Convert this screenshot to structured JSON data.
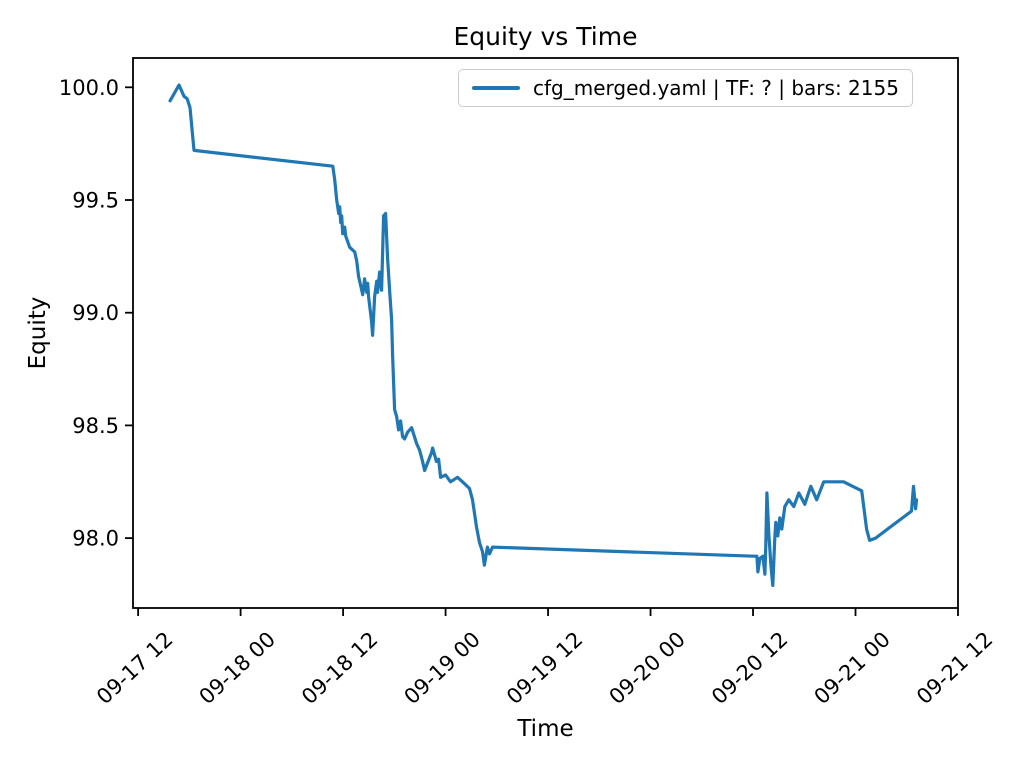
{
  "figure": {
    "title": "Equity vs Time",
    "xlabel": "Time",
    "ylabel": "Equity"
  },
  "legend": {
    "label": "cfg_merged.yaml | TF: ? | bars: 2155",
    "line_color": "#1f77b4",
    "position": "upper center-right inside axes"
  },
  "style": {
    "line_color": "#1f77b4",
    "axis_color": "#000000",
    "background": "#ffffff",
    "legend_border_color": "#cccccc",
    "line_width": 3.2
  },
  "chart_data": {
    "type": "line",
    "title": "Equity vs Time",
    "xlabel": "Time",
    "ylabel": "Equity",
    "grid": false,
    "x_unit": "hours since 09-17 00:00",
    "xlim": [
      11.4,
      108.0
    ],
    "ylim": [
      97.69,
      100.13
    ],
    "y_ticks": [
      98.0,
      98.5,
      99.0,
      99.5,
      100.0
    ],
    "x_ticks": [
      {
        "pos": 12,
        "label": "09-17 12"
      },
      {
        "pos": 24,
        "label": "09-18 00"
      },
      {
        "pos": 36,
        "label": "09-18 12"
      },
      {
        "pos": 48,
        "label": "09-19 00"
      },
      {
        "pos": 60,
        "label": "09-19 12"
      },
      {
        "pos": 72,
        "label": "09-20 00"
      },
      {
        "pos": 84,
        "label": "09-20 12"
      },
      {
        "pos": 96,
        "label": "09-21 00"
      },
      {
        "pos": 108,
        "label": "09-21 12"
      }
    ],
    "series": [
      {
        "name": "cfg_merged.yaml | TF: ? | bars: 2155",
        "color": "#1f77b4",
        "points": [
          [
            15.74,
            99.94
          ],
          [
            16.79,
            100.01
          ],
          [
            17.37,
            99.96
          ],
          [
            17.73,
            99.95
          ],
          [
            18.08,
            99.91
          ],
          [
            18.54,
            99.72
          ],
          [
            34.79,
            99.65
          ],
          [
            35.02,
            99.59
          ],
          [
            35.25,
            99.5
          ],
          [
            35.49,
            99.44
          ],
          [
            35.6,
            99.47
          ],
          [
            35.72,
            99.4
          ],
          [
            35.84,
            99.43
          ],
          [
            35.95,
            99.35
          ],
          [
            36.19,
            99.38
          ],
          [
            36.3,
            99.34
          ],
          [
            36.77,
            99.29
          ],
          [
            37.36,
            99.27
          ],
          [
            37.59,
            99.23
          ],
          [
            37.82,
            99.16
          ],
          [
            38.06,
            99.12
          ],
          [
            38.29,
            99.08
          ],
          [
            38.52,
            99.15
          ],
          [
            38.76,
            99.09
          ],
          [
            38.88,
            99.13
          ],
          [
            38.99,
            99.07
          ],
          [
            39.34,
            98.96
          ],
          [
            39.46,
            98.9
          ],
          [
            39.69,
            99.07
          ],
          [
            39.93,
            99.14
          ],
          [
            40.04,
            99.09
          ],
          [
            40.28,
            99.18
          ],
          [
            40.51,
            99.1
          ],
          [
            40.74,
            99.43
          ],
          [
            40.98,
            99.44
          ],
          [
            41.21,
            99.24
          ],
          [
            41.45,
            99.1
          ],
          [
            41.68,
            98.97
          ],
          [
            41.8,
            98.81
          ],
          [
            42.03,
            98.57
          ],
          [
            42.27,
            98.54
          ],
          [
            42.5,
            98.48
          ],
          [
            42.73,
            98.52
          ],
          [
            42.97,
            98.45
          ],
          [
            43.2,
            98.44
          ],
          [
            43.55,
            98.47
          ],
          [
            44.02,
            98.49
          ],
          [
            44.61,
            98.42
          ],
          [
            44.96,
            98.39
          ],
          [
            45.31,
            98.34
          ],
          [
            45.54,
            98.3
          ],
          [
            46.36,
            98.38
          ],
          [
            46.48,
            98.4
          ],
          [
            46.94,
            98.34
          ],
          [
            47.18,
            98.35
          ],
          [
            47.42,
            98.27
          ],
          [
            48.0,
            98.28
          ],
          [
            48.58,
            98.25
          ],
          [
            49.4,
            98.27
          ],
          [
            49.98,
            98.25
          ],
          [
            50.8,
            98.22
          ],
          [
            51.15,
            98.17
          ],
          [
            51.39,
            98.11
          ],
          [
            51.62,
            98.05
          ],
          [
            51.97,
            97.98
          ],
          [
            52.32,
            97.94
          ],
          [
            52.55,
            97.88
          ],
          [
            52.9,
            97.96
          ],
          [
            53.14,
            97.93
          ],
          [
            53.49,
            97.96
          ],
          [
            84.1,
            97.92
          ],
          [
            84.45,
            97.92
          ],
          [
            84.57,
            97.85
          ],
          [
            84.8,
            97.91
          ],
          [
            85.15,
            97.92
          ],
          [
            85.39,
            97.84
          ],
          [
            85.5,
            97.97
          ],
          [
            85.62,
            98.2
          ],
          [
            85.85,
            98.02
          ],
          [
            86.09,
            97.88
          ],
          [
            86.32,
            97.79
          ],
          [
            86.55,
            98.0
          ],
          [
            86.67,
            98.07
          ],
          [
            86.9,
            98.01
          ],
          [
            87.14,
            98.09
          ],
          [
            87.37,
            98.04
          ],
          [
            87.72,
            98.14
          ],
          [
            88.19,
            98.17
          ],
          [
            88.77,
            98.14
          ],
          [
            89.36,
            98.2
          ],
          [
            90.06,
            98.15
          ],
          [
            90.76,
            98.23
          ],
          [
            91.46,
            98.17
          ],
          [
            92.28,
            98.25
          ],
          [
            94.61,
            98.25
          ],
          [
            96.72,
            98.21
          ],
          [
            97.3,
            98.04
          ],
          [
            97.65,
            97.99
          ],
          [
            98.35,
            98.0
          ],
          [
            102.56,
            98.12
          ],
          [
            102.79,
            98.23
          ],
          [
            103.03,
            98.13
          ],
          [
            103.14,
            98.17
          ]
        ]
      }
    ]
  }
}
